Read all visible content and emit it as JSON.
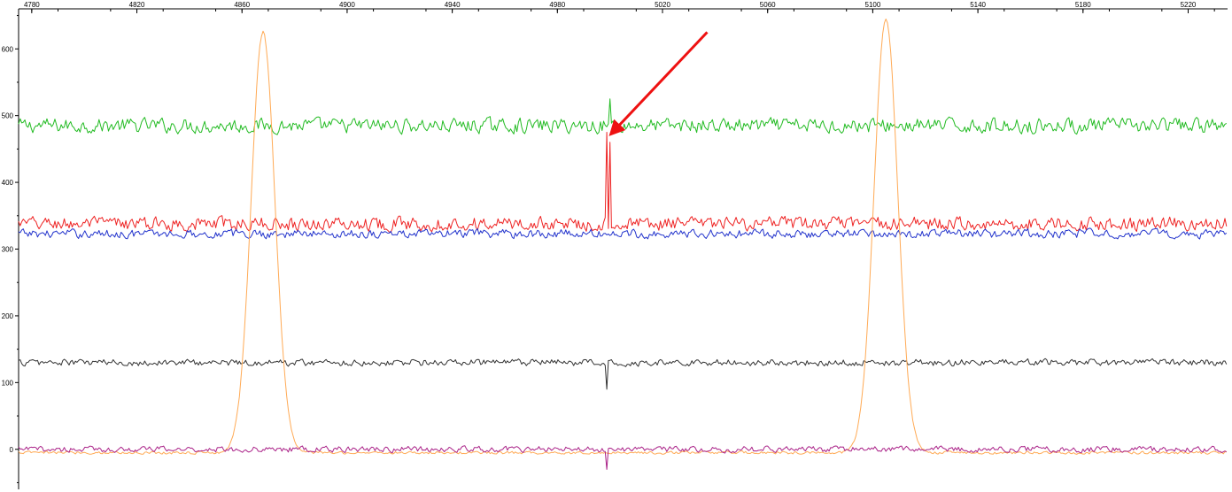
{
  "chart_data": {
    "type": "line",
    "title": "",
    "xlabel": "",
    "ylabel": "",
    "xlim": [
      4775,
      5235
    ],
    "ylim": [
      -60,
      660
    ],
    "x_ticks": [
      4780,
      4820,
      4860,
      4900,
      4940,
      4980,
      5020,
      5060,
      5100,
      5140,
      5180,
      5220
    ],
    "x_tick_labels": [
      "4780",
      "4820",
      "4860",
      "4900",
      "4940",
      "4980",
      "5020",
      "5060",
      "5100",
      "5140",
      "5180",
      "5220"
    ],
    "y_ticks": [
      0,
      100,
      200,
      300,
      400,
      500,
      600
    ],
    "y_tick_labels": [
      "0",
      "100",
      "200",
      "300",
      "400",
      "500",
      "600"
    ],
    "grid": false,
    "legend": "none",
    "series": [
      {
        "color": "#22bb22",
        "baseline": 485,
        "amplitude": 15,
        "spikes": [
          {
            "x": 5000,
            "value": 525
          }
        ]
      },
      {
        "color": "#ee2222",
        "baseline": 338,
        "amplitude": 14,
        "spikes": [
          {
            "x": 4999,
            "value": 475
          },
          {
            "x": 4999.8,
            "value": 460
          }
        ]
      },
      {
        "color": "#2233cc",
        "baseline": 323,
        "amplitude": 9,
        "spikes": []
      },
      {
        "color": "#333333",
        "baseline": 130,
        "amplitude": 7,
        "spikes": [
          {
            "x": 4999,
            "value": 90
          }
        ]
      },
      {
        "color": "#ffaa55",
        "baseline": -5,
        "amplitude": 3,
        "peaks": [
          {
            "center": 4868,
            "height": 625,
            "width": 4.5
          },
          {
            "center": 5105,
            "height": 645,
            "width": 4.5
          }
        ]
      },
      {
        "color": "#aa2288",
        "baseline": 0,
        "amplitude": 6,
        "spikes": [
          {
            "x": 4999,
            "value": -30
          }
        ]
      }
    ],
    "annotations": [
      {
        "type": "arrow",
        "color": "#ee1111",
        "from": {
          "x": 5037,
          "y": 625
        },
        "to": {
          "x": 5001,
          "y": 475
        }
      }
    ]
  }
}
